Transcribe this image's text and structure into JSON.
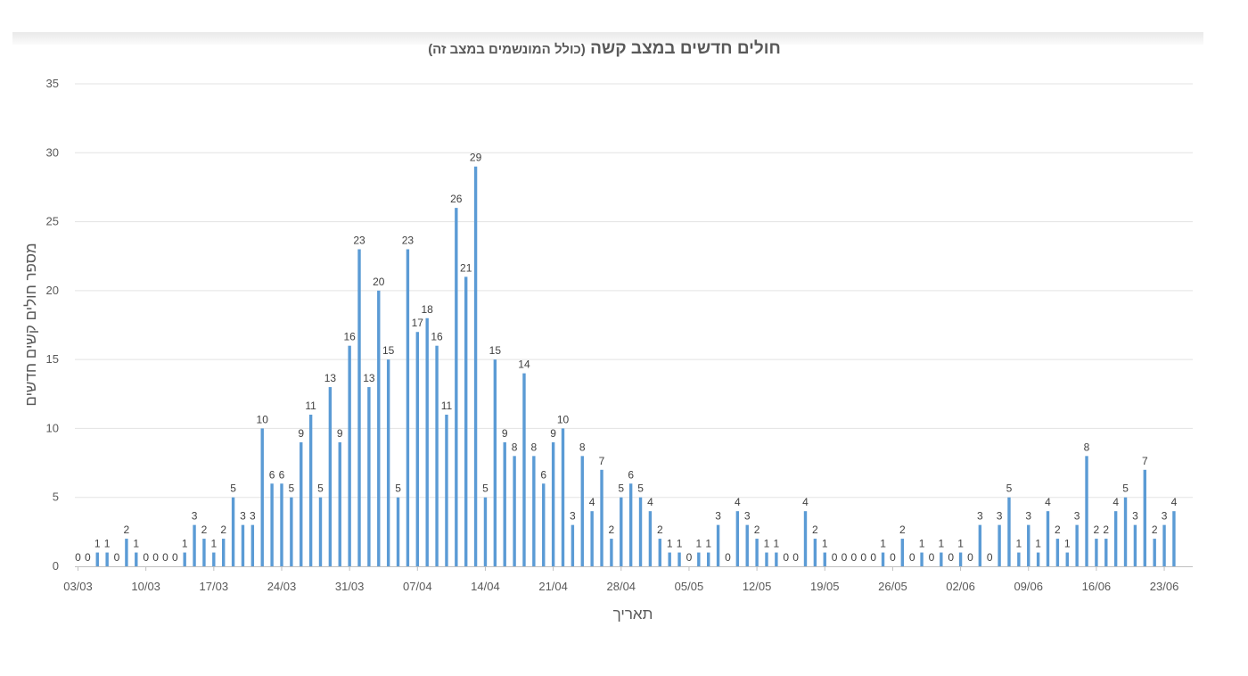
{
  "chart_data": {
    "type": "bar",
    "title": "חולים חדשים במצב קשה",
    "subtitle": "(כולל המונשמים במצב זה)",
    "xlabel": "תאריך",
    "ylabel": "מספר חולים קשים חדשים",
    "ylim": [
      0,
      35
    ],
    "yticks": [
      0,
      5,
      10,
      15,
      20,
      25,
      30,
      35
    ],
    "x_tick_labels": [
      "03/03",
      "10/03",
      "17/03",
      "24/03",
      "31/03",
      "07/04",
      "14/04",
      "21/04",
      "28/04",
      "05/05",
      "12/05",
      "19/05",
      "26/05",
      "02/06",
      "09/06",
      "16/06",
      "23/06"
    ],
    "bar_color": "#5b9bd5",
    "start_date": "03/03",
    "values": [
      0,
      0,
      1,
      1,
      0,
      2,
      1,
      0,
      0,
      0,
      0,
      1,
      3,
      2,
      1,
      2,
      5,
      3,
      3,
      10,
      6,
      6,
      5,
      9,
      11,
      5,
      13,
      9,
      16,
      23,
      13,
      20,
      15,
      5,
      23,
      17,
      18,
      16,
      11,
      26,
      21,
      29,
      5,
      15,
      9,
      8,
      14,
      8,
      6,
      9,
      10,
      3,
      8,
      4,
      7,
      2,
      5,
      6,
      5,
      4,
      2,
      1,
      1,
      0,
      1,
      1,
      3,
      0,
      4,
      3,
      2,
      1,
      1,
      0,
      0,
      4,
      2,
      1,
      0,
      0,
      0,
      0,
      0,
      1,
      0,
      2,
      0,
      1,
      0,
      1,
      0,
      1,
      0,
      3,
      0,
      3,
      5,
      1,
      3,
      1,
      4,
      2,
      1,
      3,
      8,
      2,
      2,
      4,
      5,
      3,
      7,
      2,
      3,
      4
    ]
  }
}
